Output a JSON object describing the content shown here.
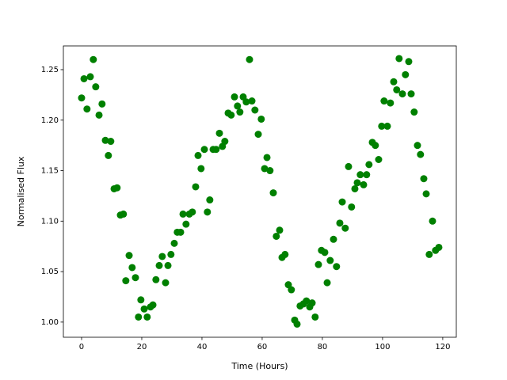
{
  "chart_data": {
    "type": "scatter",
    "x_label": "Time (Hours)",
    "y_label": "Normalised Flux",
    "color": "#008000",
    "x": [
      0,
      0.8,
      1.8,
      2.9,
      3.9,
      4.7,
      5.8,
      6.8,
      7.9,
      8.9,
      9.7,
      10.8,
      11.8,
      12.9,
      13.9,
      14.7,
      15.8,
      16.8,
      17.9,
      18.9,
      19.7,
      20.8,
      21.8,
      22.9,
      23.7,
      24.7,
      25.8,
      26.8,
      27.9,
      28.7,
      29.7,
      30.8,
      31.8,
      32.9,
      33.7,
      34.7,
      35.8,
      36.8,
      37.9,
      38.7,
      39.7,
      40.8,
      41.8,
      42.6,
      43.7,
      44.7,
      45.8,
      46.8,
      47.6,
      48.7,
      49.7,
      50.8,
      51.8,
      52.6,
      53.7,
      54.7,
      55.8,
      56.6,
      57.6,
      58.7,
      59.7,
      60.8,
      61.6,
      62.6,
      63.7,
      64.7,
      65.8,
      66.6,
      67.6,
      68.7,
      69.7,
      70.8,
      71.6,
      72.6,
      73.7,
      74.7,
      75.8,
      76.6,
      77.6,
      78.7,
      79.7,
      80.8,
      81.6,
      82.6,
      83.7,
      84.7,
      85.8,
      86.6,
      87.6,
      88.7,
      89.7,
      90.8,
      91.6,
      92.6,
      93.7,
      94.7,
      95.5,
      96.6,
      97.6,
      98.7,
      99.7,
      100.5,
      101.6,
      102.6,
      103.7,
      104.7,
      105.5,
      106.6,
      107.6,
      108.7,
      109.5,
      110.5,
      111.6,
      112.6,
      113.7,
      114.5,
      115.5,
      116.6,
      117.6,
      118.7
    ],
    "values": [
      1.222,
      1.241,
      1.211,
      1.243,
      1.26,
      1.233,
      1.205,
      1.216,
      1.18,
      1.165,
      1.179,
      1.132,
      1.133,
      1.106,
      1.107,
      1.041,
      1.066,
      1.054,
      1.044,
      1.005,
      1.022,
      1.013,
      1.005,
      1.015,
      1.017,
      1.042,
      1.056,
      1.065,
      1.039,
      1.056,
      1.067,
      1.078,
      1.089,
      1.089,
      1.107,
      1.097,
      1.107,
      1.109,
      1.134,
      1.165,
      1.152,
      1.171,
      1.109,
      1.121,
      1.171,
      1.171,
      1.187,
      1.174,
      1.179,
      1.207,
      1.205,
      1.223,
      1.214,
      1.208,
      1.223,
      1.218,
      1.26,
      1.219,
      1.21,
      1.186,
      1.201,
      1.152,
      1.163,
      1.15,
      1.128,
      1.085,
      1.091,
      1.064,
      1.067,
      1.037,
      1.032,
      1.002,
      0.998,
      1.016,
      1.018,
      1.021,
      1.015,
      1.019,
      1.005,
      1.057,
      1.071,
      1.069,
      1.039,
      1.061,
      1.082,
      1.055,
      1.098,
      1.119,
      1.093,
      1.154,
      1.114,
      1.132,
      1.138,
      1.146,
      1.136,
      1.146,
      1.156,
      1.178,
      1.175,
      1.161,
      1.194,
      1.219,
      1.194,
      1.217,
      1.238,
      1.23,
      1.261,
      1.226,
      1.245,
      1.258,
      1.226,
      1.208,
      1.175,
      1.166,
      1.142,
      1.127,
      1.067,
      1.1,
      1.071,
      1.074
    ],
    "xlim": [
      -6.05,
      124.5
    ],
    "ylim": [
      0.985,
      1.2735
    ],
    "xticks": [
      0,
      20,
      40,
      60,
      80,
      100,
      120
    ],
    "yticks": [
      {
        "value": 1.0,
        "label": "1.00"
      },
      1.05,
      {
        "value": 1.1,
        "label": "1.10"
      },
      1.15,
      {
        "value": 1.2,
        "label": "1.20"
      },
      1.25
    ]
  }
}
